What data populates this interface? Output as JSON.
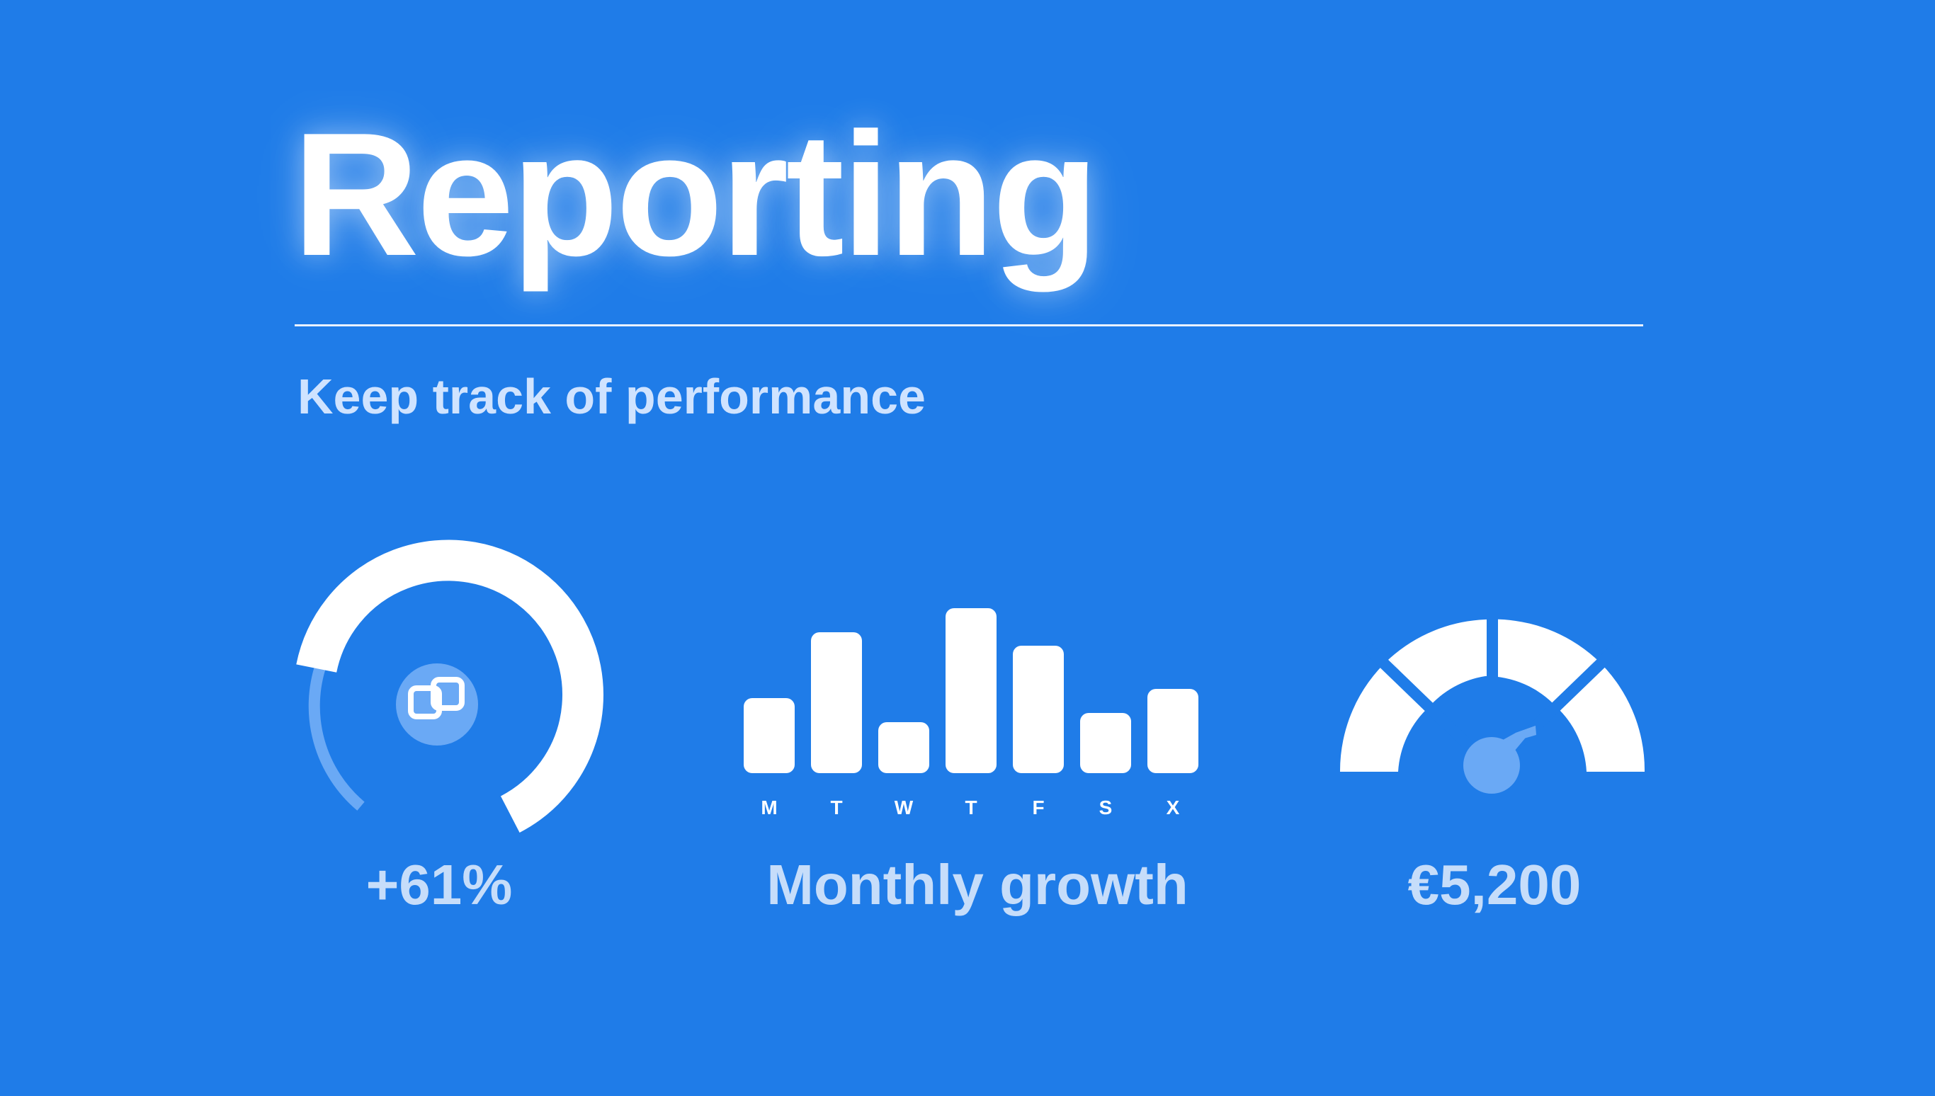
{
  "header": {
    "title": "Reporting",
    "subtitle": "Keep track of performance"
  },
  "widgets": {
    "growth_ring": {
      "label": "+61%",
      "icon": "link-icon"
    },
    "weekly_bars": {
      "label": "Monthly growth"
    },
    "speedometer": {
      "label": "€5,200"
    }
  },
  "chart_data": {
    "type": "bar",
    "categories": [
      "M",
      "T",
      "W",
      "T",
      "F",
      "S",
      "X"
    ],
    "values": [
      40,
      75,
      27,
      88,
      68,
      32,
      45
    ],
    "ylim": [
      0,
      100
    ]
  },
  "colors": {
    "background": "#1f7ce8",
    "foreground": "#ffffff",
    "muted": "#c6ddfa",
    "accent_light": "#6aa9f5"
  }
}
